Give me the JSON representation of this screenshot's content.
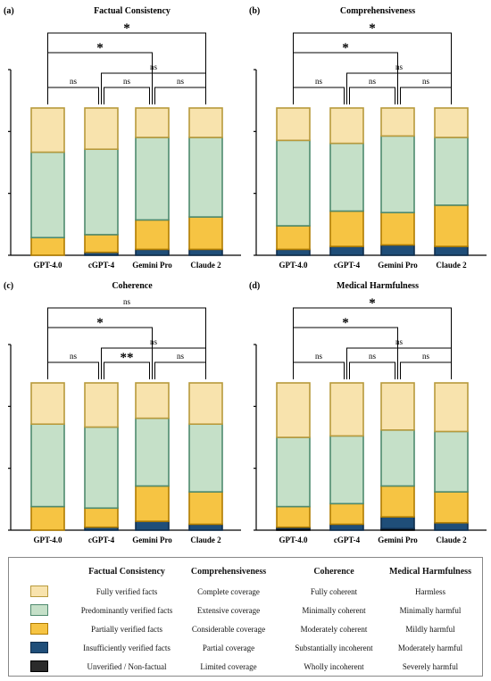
{
  "colors": {
    "level1": "#f8e3ad",
    "level2": "#c5e0c8",
    "level3": "#f6c443",
    "level4": "#1f4e79",
    "level5": "#2b2b2b",
    "border1": "#b89a3c",
    "border2": "#4f8a6e",
    "border3": "#b07c00",
    "border4": "#0f2d4c",
    "border5": "#000000"
  },
  "chart_data": [
    {
      "type": "bar",
      "panel_label": "(a)",
      "title": "Factual Consistency",
      "categories": [
        "GPT-4.0",
        "cGPT-4",
        "Gemini Pro",
        "Claude 2"
      ],
      "stacked": true,
      "series": [
        {
          "level": 5,
          "values": [
            0,
            0,
            0,
            0
          ]
        },
        {
          "level": 4,
          "values": [
            0,
            2,
            4,
            4
          ]
        },
        {
          "level": 3,
          "values": [
            12,
            12,
            20,
            22
          ]
        },
        {
          "level": 2,
          "values": [
            58,
            58,
            56,
            54
          ]
        },
        {
          "level": 1,
          "values": [
            30,
            28,
            20,
            20
          ]
        }
      ],
      "ylim": [
        0,
        100
      ],
      "brackets": [
        {
          "from": 0,
          "to": 3,
          "label": "*"
        },
        {
          "from": 0,
          "to": 2,
          "label": "*"
        },
        {
          "from": 1,
          "to": 3,
          "label": "ns"
        },
        {
          "from": 0,
          "to": 1,
          "label": "ns"
        },
        {
          "from": 1,
          "to": 2,
          "label": "ns"
        },
        {
          "from": 2,
          "to": 3,
          "label": "ns"
        }
      ]
    },
    {
      "type": "bar",
      "panel_label": "(b)",
      "title": "Comprehensiveness",
      "categories": [
        "GPT-4.0",
        "cGPT-4",
        "Gemini Pro",
        "Claude 2"
      ],
      "stacked": true,
      "series": [
        {
          "level": 5,
          "values": [
            0,
            0,
            0,
            0
          ]
        },
        {
          "level": 4,
          "values": [
            4,
            6,
            7,
            6
          ]
        },
        {
          "level": 3,
          "values": [
            16,
            24,
            22,
            28
          ]
        },
        {
          "level": 2,
          "values": [
            58,
            46,
            52,
            46
          ]
        },
        {
          "level": 1,
          "values": [
            22,
            24,
            19,
            20
          ]
        }
      ],
      "ylim": [
        0,
        100
      ],
      "brackets": [
        {
          "from": 0,
          "to": 3,
          "label": "*"
        },
        {
          "from": 0,
          "to": 2,
          "label": "*"
        },
        {
          "from": 1,
          "to": 3,
          "label": "ns"
        },
        {
          "from": 0,
          "to": 1,
          "label": "ns"
        },
        {
          "from": 1,
          "to": 2,
          "label": "ns"
        },
        {
          "from": 2,
          "to": 3,
          "label": "ns"
        }
      ]
    },
    {
      "type": "bar",
      "panel_label": "(c)",
      "title": "Coherence",
      "categories": [
        "GPT-4.0",
        "cGPT-4",
        "Gemini Pro",
        "Claude 2"
      ],
      "stacked": true,
      "series": [
        {
          "level": 5,
          "values": [
            0,
            0,
            0,
            0
          ]
        },
        {
          "level": 4,
          "values": [
            0,
            2,
            6,
            4
          ]
        },
        {
          "level": 3,
          "values": [
            16,
            13,
            24,
            22
          ]
        },
        {
          "level": 2,
          "values": [
            56,
            55,
            46,
            46
          ]
        },
        {
          "level": 1,
          "values": [
            28,
            30,
            24,
            28
          ]
        }
      ],
      "ylim": [
        0,
        100
      ],
      "brackets": [
        {
          "from": 0,
          "to": 3,
          "label": "ns"
        },
        {
          "from": 0,
          "to": 2,
          "label": "*"
        },
        {
          "from": 1,
          "to": 3,
          "label": "ns"
        },
        {
          "from": 0,
          "to": 1,
          "label": "ns"
        },
        {
          "from": 1,
          "to": 2,
          "label": "**"
        },
        {
          "from": 2,
          "to": 3,
          "label": "ns"
        }
      ]
    },
    {
      "type": "bar",
      "panel_label": "(d)",
      "title": "Medical Harmfulness",
      "categories": [
        "GPT-4.0",
        "cGPT-4",
        "Gemini Pro",
        "Claude 2"
      ],
      "stacked": true,
      "series": [
        {
          "level": 5,
          "values": [
            1,
            0,
            1,
            0
          ]
        },
        {
          "level": 4,
          "values": [
            1,
            4,
            8,
            5
          ]
        },
        {
          "level": 3,
          "values": [
            14,
            14,
            21,
            21
          ]
        },
        {
          "level": 2,
          "values": [
            47,
            46,
            38,
            41
          ]
        },
        {
          "level": 1,
          "values": [
            37,
            36,
            32,
            33
          ]
        }
      ],
      "ylim": [
        0,
        100
      ],
      "brackets": [
        {
          "from": 0,
          "to": 3,
          "label": "*"
        },
        {
          "from": 0,
          "to": 2,
          "label": "*"
        },
        {
          "from": 1,
          "to": 3,
          "label": "ns"
        },
        {
          "from": 0,
          "to": 1,
          "label": "ns"
        },
        {
          "from": 1,
          "to": 2,
          "label": "ns"
        },
        {
          "from": 2,
          "to": 3,
          "label": "ns"
        }
      ]
    }
  ],
  "legend": {
    "headers": [
      "Factual Consistency",
      "Comprehensiveness",
      "Coherence",
      "Medical Harmfulness"
    ],
    "rows": [
      {
        "level": 1,
        "labels": [
          "Fully verified facts",
          "Complete coverage",
          "Fully coherent",
          "Harmless"
        ]
      },
      {
        "level": 2,
        "labels": [
          "Predominantly verified facts",
          "Extensive coverage",
          "Minimally coherent",
          "Minimally harmful"
        ]
      },
      {
        "level": 3,
        "labels": [
          "Partially verified facts",
          "Considerable coverage",
          "Moderately coherent",
          "Mildly harmful"
        ]
      },
      {
        "level": 4,
        "labels": [
          "Insufficiently verified facts",
          "Partial coverage",
          "Substantially incoherent",
          "Moderately harmful"
        ]
      },
      {
        "level": 5,
        "labels": [
          "Unverified / Non-factual",
          "Limited coverage",
          "Wholly incoherent",
          "Severely harmful"
        ]
      }
    ]
  }
}
